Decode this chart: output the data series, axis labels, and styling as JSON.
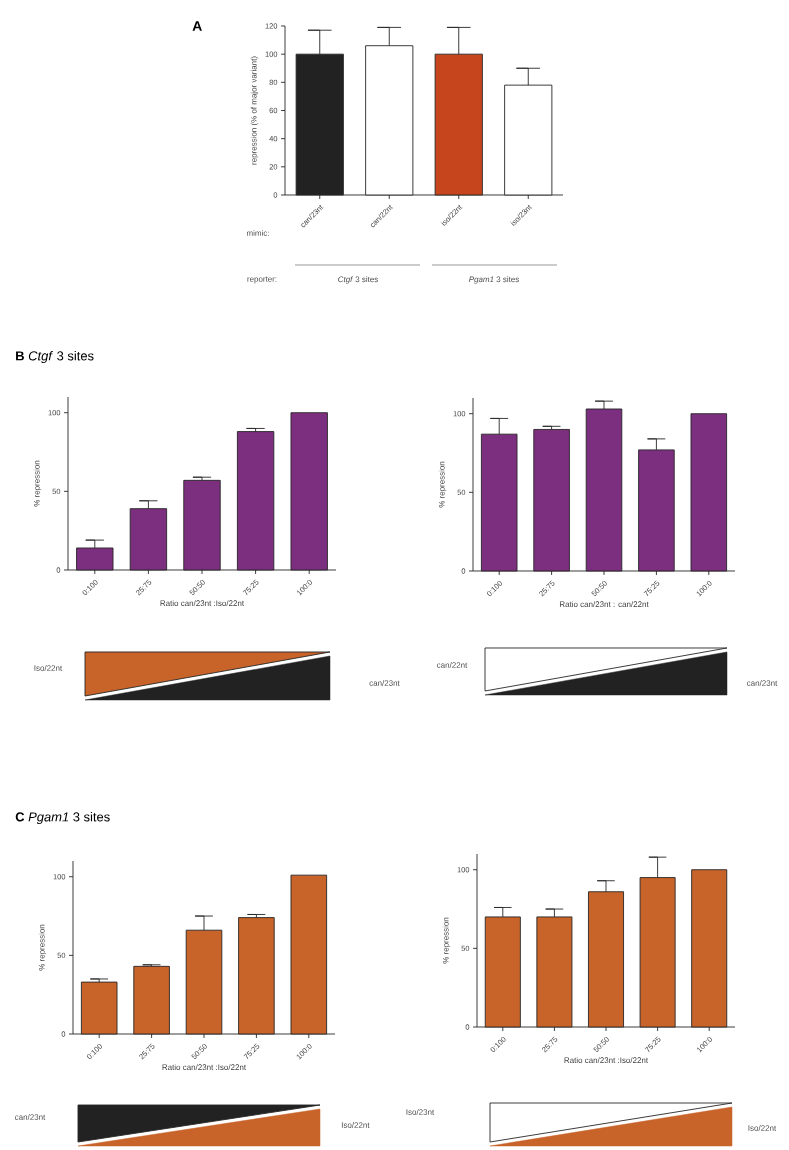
{
  "chart_data": [
    {
      "type": "bar",
      "title": "A",
      "ylabel": "repression (% of major variant)",
      "categories": [
        "can/23nt",
        "can/22nt",
        "iso/22nt",
        "iso/23nt"
      ],
      "values": [
        100,
        106,
        100,
        78
      ],
      "errors": [
        [
          100,
          117
        ],
        [
          106,
          119
        ],
        [
          100,
          119
        ],
        [
          78,
          90
        ]
      ],
      "colors": [
        "#222222",
        "#ffffff",
        "#c7451c",
        "#ffffff"
      ],
      "ylim": [
        0,
        120
      ],
      "yticks": [
        0,
        20,
        40,
        60,
        80,
        100,
        120
      ],
      "annotations": [
        "mimic:",
        "reporter:",
        "*Ctgf* 3 sites",
        "*Pgam1* 3 sites"
      ]
    },
    {
      "type": "bar",
      "title": "**B** *Ctgf* 3 sites",
      "xlabel": "Ratio can/23nt :Iso/22nt",
      "ylabel": "% repression",
      "categories": [
        "0:100",
        "25:75",
        "50:50",
        "75:25",
        "100:0"
      ],
      "values": [
        14,
        39,
        57,
        88,
        100
      ],
      "errors": [
        [
          14,
          19
        ],
        [
          39,
          44
        ],
        [
          57,
          59
        ],
        [
          88,
          90
        ],
        null
      ],
      "color": "#7d2f7f",
      "ylim": [
        0,
        110
      ],
      "yticks": [
        0,
        50,
        100
      ],
      "annotations": [
        "Iso/22nt",
        "can/23nt"
      ]
    },
    {
      "type": "bar",
      "xlabel": "Ratio can/23nt : can/22nt",
      "ylabel": "% repression",
      "categories": [
        "0:100",
        "25:75",
        "50:50",
        "75:25",
        "100:0"
      ],
      "values": [
        87,
        90,
        103,
        77,
        100
      ],
      "errors": [
        [
          87,
          97
        ],
        [
          90,
          92
        ],
        [
          103,
          108
        ],
        [
          77,
          84
        ],
        null
      ],
      "color": "#7d2f7f",
      "ylim": [
        0,
        110
      ],
      "yticks": [
        0,
        50,
        100
      ],
      "annotations": [
        "can/22nt",
        "can/23nt"
      ]
    },
    {
      "type": "bar",
      "title": "**C** *Pgam1* 3 sites",
      "xlabel": "Ratio can/23nt :Iso/22nt",
      "ylabel": "% repression",
      "categories": [
        "0:100",
        "25:75",
        "50:50",
        "75:25",
        "100:0"
      ],
      "values": [
        33,
        43,
        66,
        74,
        101
      ],
      "errors": [
        [
          33,
          35
        ],
        [
          43,
          44
        ],
        [
          66,
          75
        ],
        [
          74,
          76
        ],
        null
      ],
      "color": "#c8642a",
      "ylim": [
        0,
        110
      ],
      "yticks": [
        0,
        50,
        100
      ],
      "annotations": [
        "can/23nt",
        "Iso/22nt"
      ]
    },
    {
      "type": "bar",
      "xlabel": "Ratio can/23nt :Iso/22nt",
      "ylabel": "% repression",
      "categories": [
        "0:100",
        "25:75",
        "50:50",
        "75:25",
        "100:0"
      ],
      "values": [
        70,
        70,
        86,
        95,
        100
      ],
      "errors": [
        [
          70,
          76
        ],
        [
          70,
          75
        ],
        [
          86,
          93
        ],
        [
          95,
          108
        ],
        null
      ],
      "color": "#c8642a",
      "ylim": [
        0,
        110
      ],
      "yticks": [
        0,
        50,
        100
      ],
      "annotations": [
        "Iso/23nt",
        "Iso/22nt"
      ]
    }
  ]
}
